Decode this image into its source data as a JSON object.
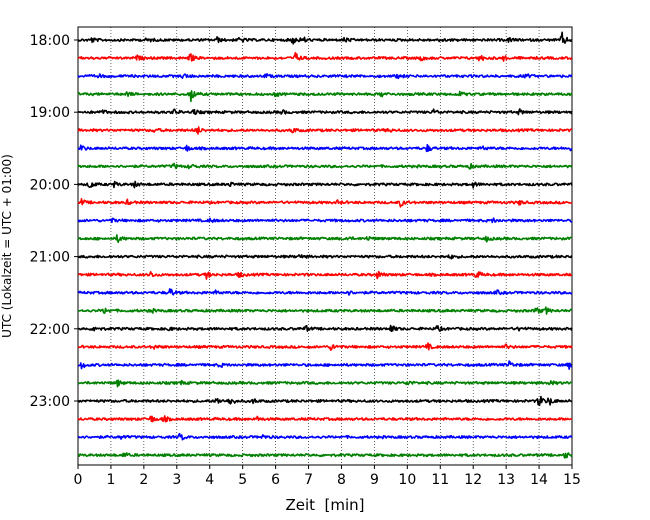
{
  "chart_data": {
    "type": "line",
    "title": "",
    "xlabel": "Zeit  [min]",
    "ylabel": "UTC (Lokalzeit = UTC + 01:00)",
    "xlim": [
      0,
      15
    ],
    "x_ticks": [
      0,
      1,
      2,
      3,
      4,
      5,
      6,
      7,
      8,
      9,
      10,
      11,
      12,
      13,
      14,
      15
    ],
    "y_ticks": [
      {
        "label": "18:00",
        "trace_index": 0
      },
      {
        "label": "19:00",
        "trace_index": 4
      },
      {
        "label": "20:00",
        "trace_index": 8
      },
      {
        "label": "21:00",
        "trace_index": 12
      },
      {
        "label": "22:00",
        "trace_index": 16
      },
      {
        "label": "23:00",
        "trace_index": 20
      }
    ],
    "grid": {
      "vertical": true,
      "style": "dotted"
    },
    "trace_colors": [
      "#000000",
      "#ff0000",
      "#0000ff",
      "#008000"
    ],
    "traces": [
      {
        "start": "18:00",
        "color": "#000000",
        "events": [
          {
            "t": 0.4,
            "a": 0.25
          },
          {
            "t": 2.1,
            "a": 0.2
          },
          {
            "t": 4.2,
            "a": 0.3
          },
          {
            "t": 4.9,
            "a": 0.35
          },
          {
            "t": 6.5,
            "a": 0.45
          },
          {
            "t": 6.8,
            "a": 0.4
          },
          {
            "t": 8.1,
            "a": 0.25
          },
          {
            "t": 11.0,
            "a": 0.2
          },
          {
            "t": 13.1,
            "a": 0.25
          },
          {
            "t": 14.7,
            "a": 0.7
          }
        ]
      },
      {
        "start": "18:15",
        "color": "#ff0000",
        "events": [
          {
            "t": 1.8,
            "a": 0.2
          },
          {
            "t": 3.4,
            "a": 0.45
          },
          {
            "t": 6.6,
            "a": 0.5
          },
          {
            "t": 10.4,
            "a": 0.25
          },
          {
            "t": 12.2,
            "a": 0.35
          },
          {
            "t": 12.9,
            "a": 0.25
          }
        ]
      },
      {
        "start": "18:30",
        "color": "#0000ff",
        "events": [
          {
            "t": 0.6,
            "a": 0.2
          },
          {
            "t": 3.2,
            "a": 0.25
          },
          {
            "t": 5.7,
            "a": 0.2
          },
          {
            "t": 9.7,
            "a": 0.2
          },
          {
            "t": 13.6,
            "a": 0.2
          }
        ]
      },
      {
        "start": "18:45",
        "color": "#008000",
        "events": [
          {
            "t": 1.5,
            "a": 0.2
          },
          {
            "t": 3.4,
            "a": 1.0
          },
          {
            "t": 6.0,
            "a": 0.2
          },
          {
            "t": 9.2,
            "a": 0.25
          },
          {
            "t": 11.6,
            "a": 0.25
          }
        ]
      },
      {
        "start": "19:00",
        "color": "#000000",
        "events": [
          {
            "t": 0.7,
            "a": 0.25
          },
          {
            "t": 2.9,
            "a": 0.3
          },
          {
            "t": 3.5,
            "a": 0.3
          },
          {
            "t": 6.2,
            "a": 0.2
          },
          {
            "t": 10.8,
            "a": 0.25
          },
          {
            "t": 13.4,
            "a": 0.25
          }
        ]
      },
      {
        "start": "19:15",
        "color": "#ff0000",
        "events": [
          {
            "t": 2.3,
            "a": 0.2
          },
          {
            "t": 3.6,
            "a": 0.5
          },
          {
            "t": 6.5,
            "a": 0.3
          },
          {
            "t": 9.4,
            "a": 0.2
          }
        ]
      },
      {
        "start": "19:30",
        "color": "#0000ff",
        "events": [
          {
            "t": 0.1,
            "a": 0.3
          },
          {
            "t": 3.3,
            "a": 0.25
          },
          {
            "t": 10.6,
            "a": 0.35
          },
          {
            "t": 12.3,
            "a": 0.2
          },
          {
            "t": 14.9,
            "a": 0.25
          }
        ]
      },
      {
        "start": "19:45",
        "color": "#008000",
        "events": [
          {
            "t": 2.9,
            "a": 0.25
          },
          {
            "t": 3.4,
            "a": 0.3
          },
          {
            "t": 11.9,
            "a": 0.2
          }
        ]
      },
      {
        "start": "20:00",
        "color": "#000000",
        "events": [
          {
            "t": 0.35,
            "a": 0.45
          },
          {
            "t": 1.1,
            "a": 0.25
          },
          {
            "t": 1.7,
            "a": 0.3
          },
          {
            "t": 4.6,
            "a": 0.2
          },
          {
            "t": 12.0,
            "a": 0.25
          }
        ]
      },
      {
        "start": "20:15",
        "color": "#ff0000",
        "events": [
          {
            "t": 0.1,
            "a": 0.3
          },
          {
            "t": 1.5,
            "a": 0.2
          },
          {
            "t": 7.9,
            "a": 0.2
          },
          {
            "t": 9.8,
            "a": 0.4
          },
          {
            "t": 13.4,
            "a": 0.2
          }
        ]
      },
      {
        "start": "20:30",
        "color": "#0000ff",
        "events": [
          {
            "t": 1.0,
            "a": 0.2
          },
          {
            "t": 4.0,
            "a": 0.2
          },
          {
            "t": 12.6,
            "a": 0.2
          }
        ]
      },
      {
        "start": "20:45",
        "color": "#008000",
        "events": [
          {
            "t": 1.2,
            "a": 0.4
          },
          {
            "t": 8.1,
            "a": 0.25
          },
          {
            "t": 8.8,
            "a": 0.2
          },
          {
            "t": 12.4,
            "a": 0.25
          }
        ]
      },
      {
        "start": "21:00",
        "color": "#000000",
        "events": [
          {
            "t": 6.7,
            "a": 0.2
          },
          {
            "t": 11.3,
            "a": 0.2
          }
        ]
      },
      {
        "start": "21:15",
        "color": "#ff0000",
        "events": [
          {
            "t": 2.2,
            "a": 0.3
          },
          {
            "t": 3.9,
            "a": 0.35
          },
          {
            "t": 4.9,
            "a": 0.3
          },
          {
            "t": 9.1,
            "a": 0.4
          },
          {
            "t": 12.1,
            "a": 0.4
          }
        ]
      },
      {
        "start": "21:30",
        "color": "#0000ff",
        "events": [
          {
            "t": 2.8,
            "a": 0.45
          },
          {
            "t": 4.2,
            "a": 0.2
          },
          {
            "t": 8.2,
            "a": 0.2
          },
          {
            "t": 12.7,
            "a": 0.2
          }
        ]
      },
      {
        "start": "21:45",
        "color": "#008000",
        "events": [
          {
            "t": 0.8,
            "a": 0.3
          },
          {
            "t": 2.2,
            "a": 0.2
          },
          {
            "t": 13.9,
            "a": 0.4
          },
          {
            "t": 14.2,
            "a": 0.3
          }
        ]
      },
      {
        "start": "22:00",
        "color": "#000000",
        "events": [
          {
            "t": 0.5,
            "a": 0.3
          },
          {
            "t": 2.7,
            "a": 0.2
          },
          {
            "t": 6.9,
            "a": 0.3
          },
          {
            "t": 9.5,
            "a": 0.4
          },
          {
            "t": 10.9,
            "a": 0.3
          },
          {
            "t": 13.4,
            "a": 0.2
          }
        ]
      },
      {
        "start": "22:15",
        "color": "#ff0000",
        "events": [
          {
            "t": 2.3,
            "a": 0.2
          },
          {
            "t": 7.7,
            "a": 0.4
          },
          {
            "t": 10.6,
            "a": 0.35
          },
          {
            "t": 13.0,
            "a": 0.2
          }
        ]
      },
      {
        "start": "22:30",
        "color": "#0000ff",
        "events": [
          {
            "t": 0.1,
            "a": 0.35
          },
          {
            "t": 4.3,
            "a": 0.2
          },
          {
            "t": 13.1,
            "a": 0.35
          },
          {
            "t": 14.9,
            "a": 0.35
          }
        ]
      },
      {
        "start": "22:45",
        "color": "#008000",
        "events": [
          {
            "t": 1.2,
            "a": 0.3
          },
          {
            "t": 3.1,
            "a": 0.2
          },
          {
            "t": 10.0,
            "a": 0.25
          },
          {
            "t": 14.3,
            "a": 0.25
          }
        ]
      },
      {
        "start": "23:00",
        "color": "#000000",
        "events": [
          {
            "t": 4.2,
            "a": 0.35
          },
          {
            "t": 4.6,
            "a": 0.5
          },
          {
            "t": 5.3,
            "a": 0.25
          },
          {
            "t": 14.0,
            "a": 0.7
          },
          {
            "t": 14.3,
            "a": 0.45
          }
        ]
      },
      {
        "start": "23:15",
        "color": "#ff0000",
        "events": [
          {
            "t": 2.2,
            "a": 0.4
          },
          {
            "t": 2.6,
            "a": 0.3
          },
          {
            "t": 5.4,
            "a": 0.3
          }
        ]
      },
      {
        "start": "23:30",
        "color": "#0000ff",
        "events": [
          {
            "t": 1.3,
            "a": 0.2
          },
          {
            "t": 3.1,
            "a": 0.4
          },
          {
            "t": 5.6,
            "a": 0.2
          }
        ]
      },
      {
        "start": "23:45",
        "color": "#008000",
        "events": [
          {
            "t": 1.4,
            "a": 0.25
          },
          {
            "t": 14.8,
            "a": 0.35
          }
        ]
      }
    ]
  }
}
